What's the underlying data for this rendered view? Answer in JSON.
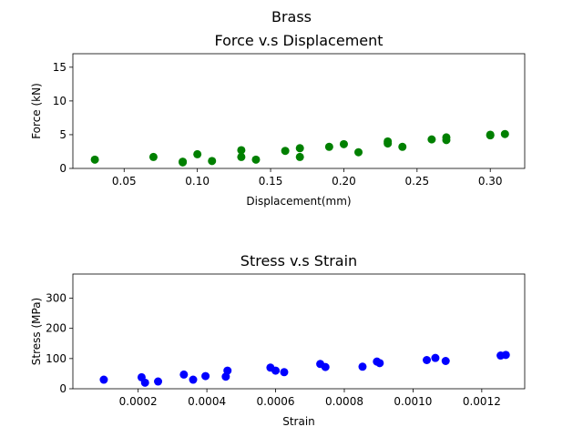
{
  "figure": {
    "suptitle": "Brass"
  },
  "chart_data": [
    {
      "type": "scatter",
      "title": "Force v.s Displacement",
      "xlabel": "Displacement(mm)",
      "ylabel": "Force (kN)",
      "xlim": [
        0.015,
        0.3235
      ],
      "ylim": [
        0,
        17
      ],
      "xticks": [
        0.05,
        0.1,
        0.15,
        0.2,
        0.25,
        0.3
      ],
      "xtick_labels": [
        "0.05",
        "0.10",
        "0.15",
        "0.20",
        "0.25",
        "0.30"
      ],
      "yticks": [
        0,
        5,
        10,
        15
      ],
      "ytick_labels": [
        "0",
        "5",
        "10",
        "15"
      ],
      "grid": false,
      "series": [
        {
          "color": "#008000",
          "x": [
            0.03,
            0.07,
            0.09,
            0.09,
            0.1,
            0.11,
            0.13,
            0.13,
            0.14,
            0.16,
            0.17,
            0.17,
            0.19,
            0.2,
            0.21,
            0.23,
            0.23,
            0.24,
            0.26,
            0.27,
            0.27,
            0.3,
            0.3,
            0.31
          ],
          "y": [
            1.3,
            1.7,
            1.0,
            0.9,
            2.1,
            1.1,
            2.7,
            1.7,
            1.3,
            2.6,
            3.0,
            1.7,
            3.2,
            3.6,
            2.4,
            4.0,
            3.7,
            3.2,
            4.3,
            4.6,
            4.2,
            5.0,
            4.9,
            5.1
          ]
        }
      ]
    },
    {
      "type": "scatter",
      "title": "Stress v.s Strain",
      "xlabel": "Strain",
      "ylabel": "Stress (MPa)",
      "xlim": [
        1e-05,
        0.001325
      ],
      "ylim": [
        0,
        380
      ],
      "xticks": [
        0.0002,
        0.0004,
        0.0006,
        0.0008,
        0.001,
        0.0012
      ],
      "xtick_labels": [
        "0.0002",
        "0.0004",
        "0.0006",
        "0.0008",
        "0.0010",
        "0.0012"
      ],
      "yticks": [
        0,
        100,
        200,
        300
      ],
      "ytick_labels": [
        "0",
        "100",
        "200",
        "300"
      ],
      "grid": false,
      "series": [
        {
          "color": "#0000ff",
          "x": [
            0.0001,
            0.00021,
            0.00022,
            0.000258,
            0.000333,
            0.00036,
            0.000396,
            0.000455,
            0.00046,
            0.000585,
            0.0006,
            0.000625,
            0.00073,
            0.000745,
            0.000853,
            0.000895,
            0.000903,
            0.00104,
            0.001065,
            0.001095,
            0.001255,
            0.00127
          ],
          "y": [
            30,
            38,
            20,
            24,
            47,
            30,
            42,
            40,
            60,
            70,
            60,
            55,
            82,
            72,
            73,
            90,
            85,
            95,
            102,
            92,
            110,
            112
          ]
        }
      ]
    }
  ]
}
